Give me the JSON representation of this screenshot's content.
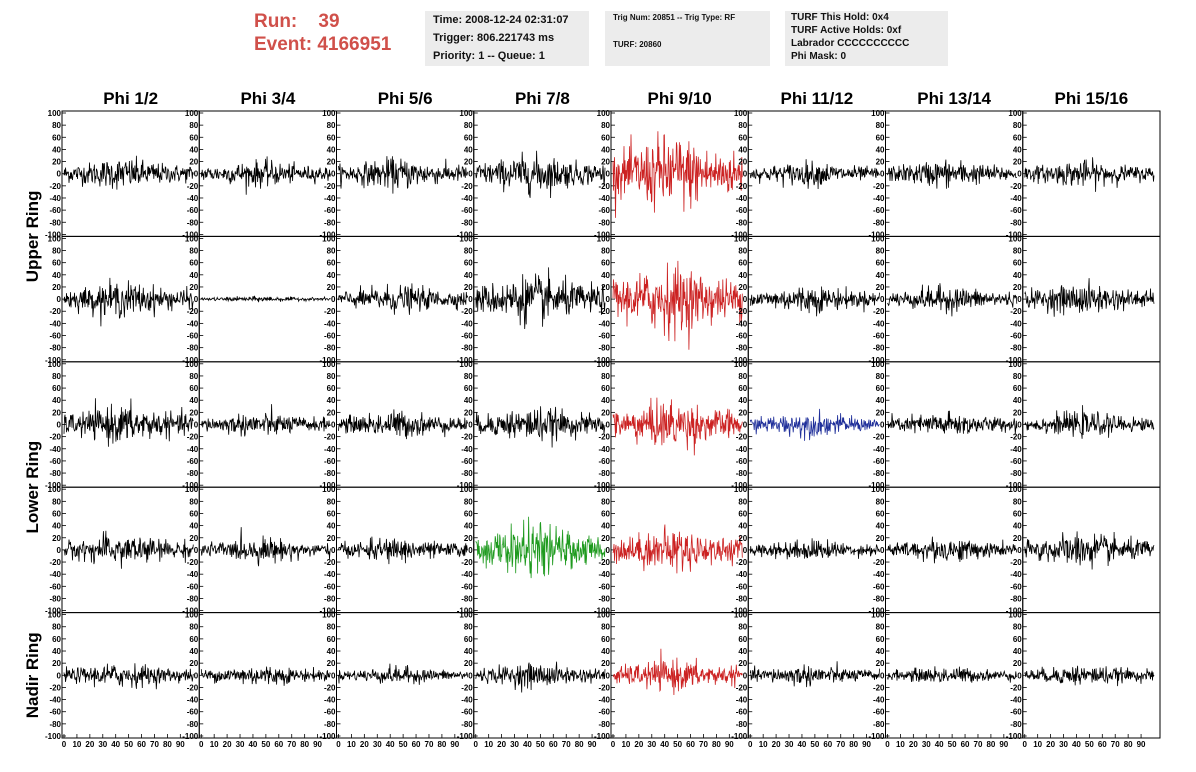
{
  "header": {
    "run_label": "Run:",
    "run_value": "39",
    "event_label": "Event:",
    "event_value": "4166951"
  },
  "info_boxes": [
    {
      "lines": [
        "Time: 2008-12-24 02:31:07",
        "Trigger: 806.221743 ms",
        "Priority: 1 -- Queue: 1"
      ]
    },
    {
      "lines": [
        "Trig Num: 20851 -- Trig Type: RF",
        "TURF: 20860"
      ]
    },
    {
      "lines": [
        "TURF This Hold: 0x4",
        "TURF Active Holds: 0xf",
        "Labrador CCCCCCCCCC",
        "Phi Mask: 0"
      ]
    }
  ],
  "colors": {
    "title": "#d0504a",
    "trace_default": "#000000",
    "red": "#cc2222",
    "green": "#1e9a1e",
    "blue": "#1f2f9a",
    "info_bg": "#ececec"
  },
  "chart_data": {
    "type": "line",
    "columns": [
      "Phi 1/2",
      "Phi 3/4",
      "Phi 5/6",
      "Phi 7/8",
      "Phi 9/10",
      "Phi 11/12",
      "Phi 13/14",
      "Phi 15/16"
    ],
    "rows": [
      "Upper Ring",
      "Lower Ring",
      "Nadir Ring"
    ],
    "ylim": [
      -100,
      100
    ],
    "xlim": [
      0,
      100
    ],
    "y_ticks": [
      "100",
      "80",
      "60",
      "40",
      "20",
      "0",
      "-20",
      "-40",
      "-60",
      "-80",
      "-100"
    ],
    "x_ticks": [
      "0",
      "10",
      "20",
      "30",
      "40",
      "50",
      "60",
      "70",
      "80",
      "90"
    ],
    "grid_rows": [
      [
        "black",
        "black",
        "black",
        "black",
        "red",
        "black",
        "black",
        "black"
      ],
      [
        "black",
        "black",
        "black",
        "black",
        "red",
        "black",
        "black",
        "black"
      ],
      [
        "black",
        "black",
        "black",
        "black",
        "red",
        "blue",
        "black",
        "black"
      ],
      [
        "black",
        "black",
        "black",
        "green",
        "red",
        "black",
        "black",
        "black"
      ],
      [
        "black",
        "black",
        "black",
        "black",
        "red",
        "black",
        "black",
        "black"
      ]
    ],
    "amplitudes": [
      [
        18,
        15,
        18,
        22,
        45,
        14,
        16,
        15
      ],
      [
        20,
        3,
        16,
        28,
        40,
        16,
        15,
        18
      ],
      [
        22,
        14,
        16,
        20,
        28,
        14,
        14,
        14
      ],
      [
        18,
        14,
        14,
        30,
        25,
        12,
        14,
        20
      ],
      [
        14,
        12,
        10,
        14,
        18,
        12,
        10,
        12
      ]
    ],
    "grid": false
  }
}
